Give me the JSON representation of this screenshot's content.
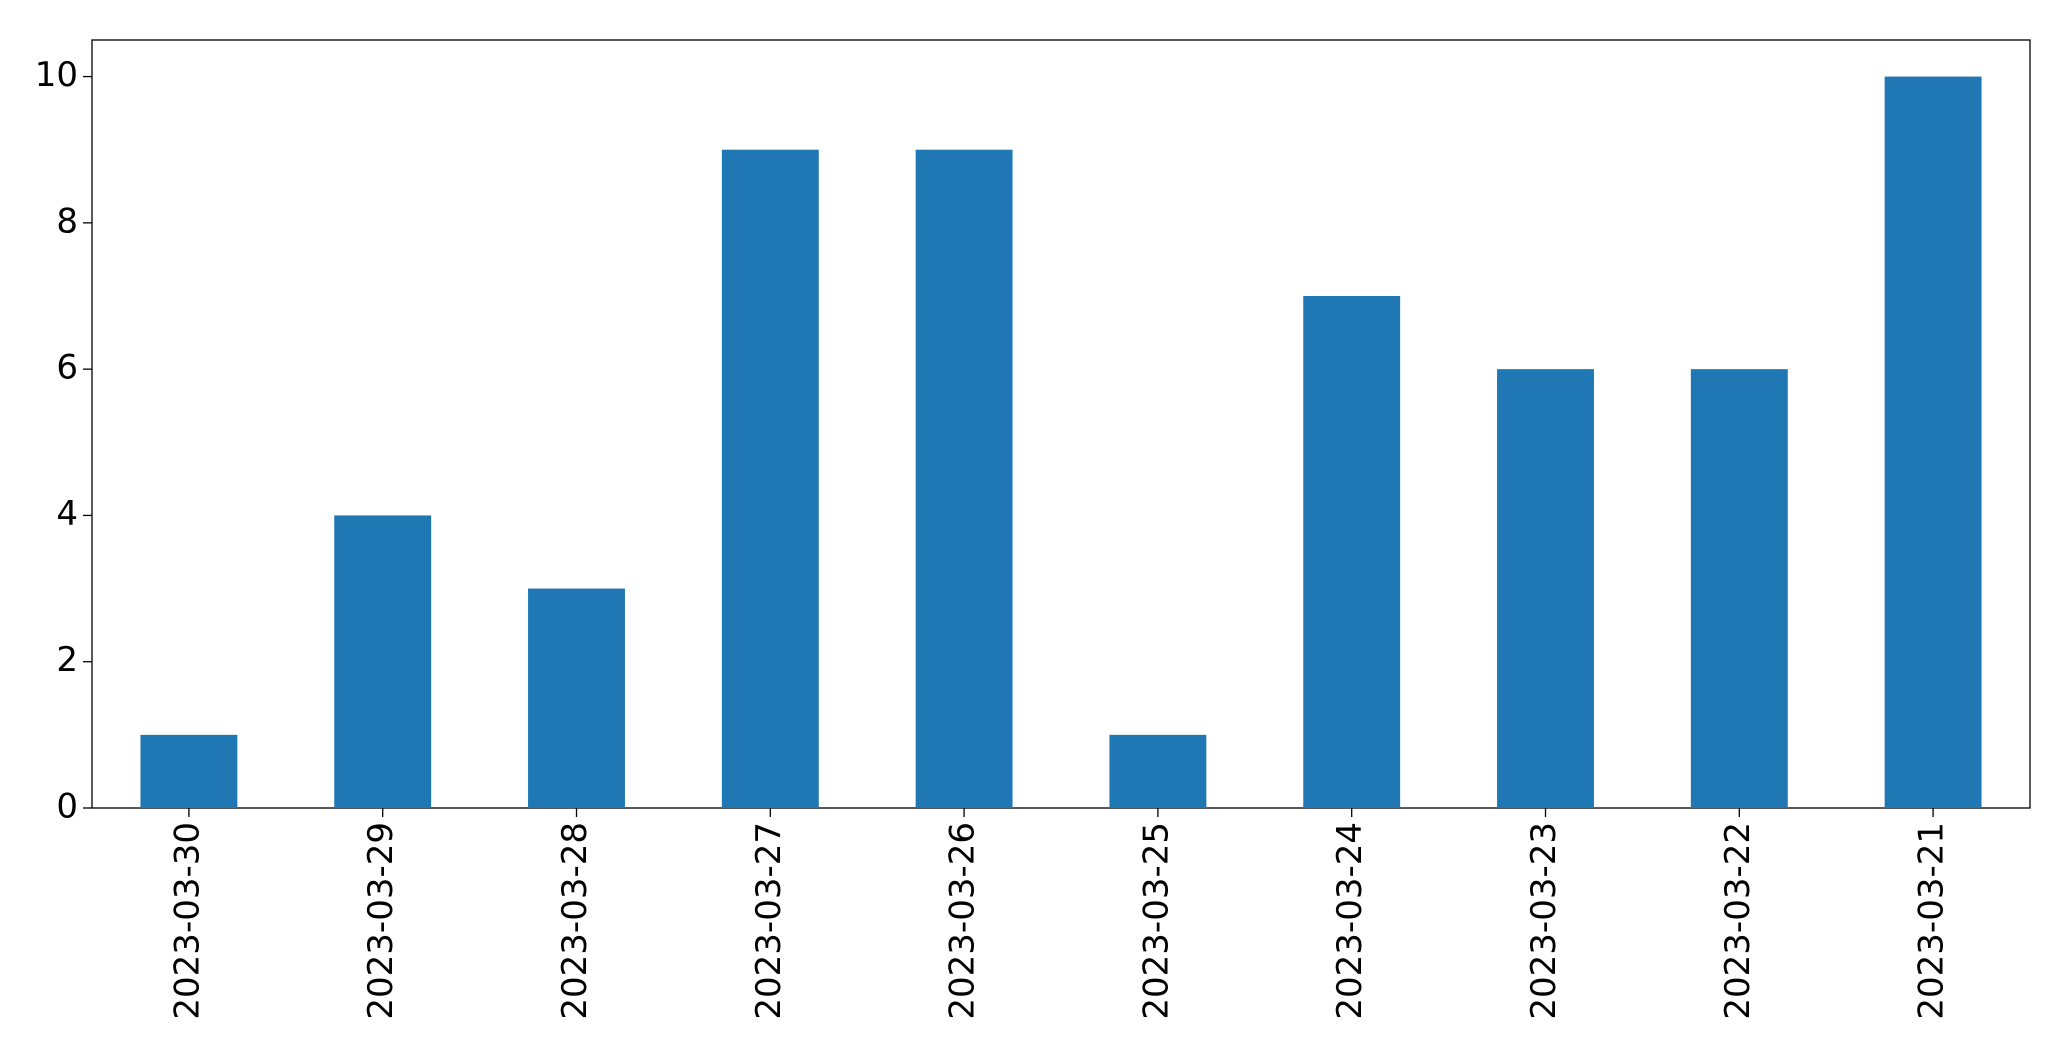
{
  "chart_data": {
    "type": "bar",
    "categories": [
      "2023-03-30",
      "2023-03-29",
      "2023-03-28",
      "2023-03-27",
      "2023-03-26",
      "2023-03-25",
      "2023-03-24",
      "2023-03-23",
      "2023-03-22",
      "2023-03-21"
    ],
    "values": [
      1,
      4,
      3,
      9,
      9,
      1,
      7,
      6,
      6,
      10
    ],
    "color": "#1f77b4",
    "ylim": [
      0,
      10.5
    ],
    "yticks": [
      0,
      2,
      4,
      6,
      8,
      10
    ],
    "grid": false
  }
}
